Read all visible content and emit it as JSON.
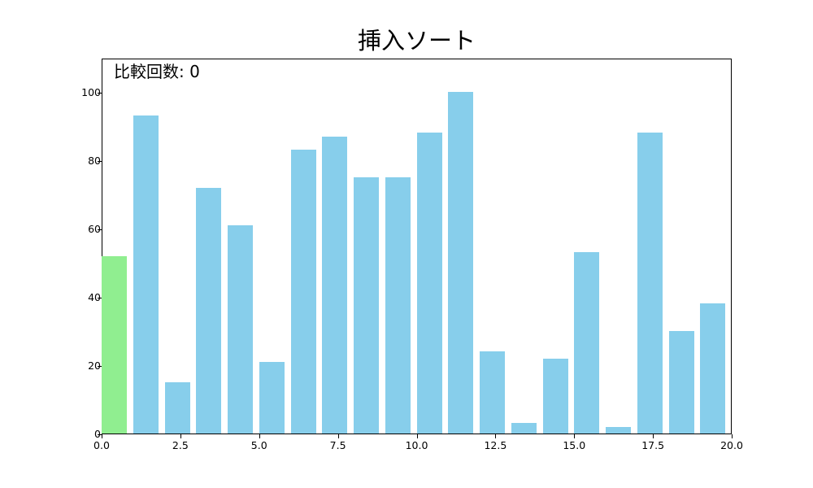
{
  "chart_data": {
    "type": "bar",
    "title": "挿入ソート",
    "annotation": "比較回数: 0",
    "xlabel": "",
    "ylabel": "",
    "xlim": [
      0,
      20
    ],
    "ylim": [
      0,
      110
    ],
    "x": [
      0,
      1,
      2,
      3,
      4,
      5,
      6,
      7,
      8,
      9,
      10,
      11,
      12,
      13,
      14,
      15,
      16,
      17,
      18,
      19
    ],
    "values": [
      52,
      93,
      15,
      72,
      61,
      21,
      83,
      87,
      75,
      75,
      88,
      100,
      24,
      3,
      22,
      53,
      2,
      88,
      30,
      38
    ],
    "bar_width": 0.8,
    "bar_align": "edge",
    "highlight_index": 0,
    "colors": {
      "default": "#87ceeb",
      "highlight": "#90ee90"
    },
    "xticks": [
      "0.0",
      "2.5",
      "5.0",
      "7.5",
      "10.0",
      "12.5",
      "15.0",
      "17.5",
      "20.0"
    ],
    "yticks": [
      "0",
      "20",
      "40",
      "60",
      "80",
      "100"
    ],
    "grid": false,
    "legend": null
  }
}
